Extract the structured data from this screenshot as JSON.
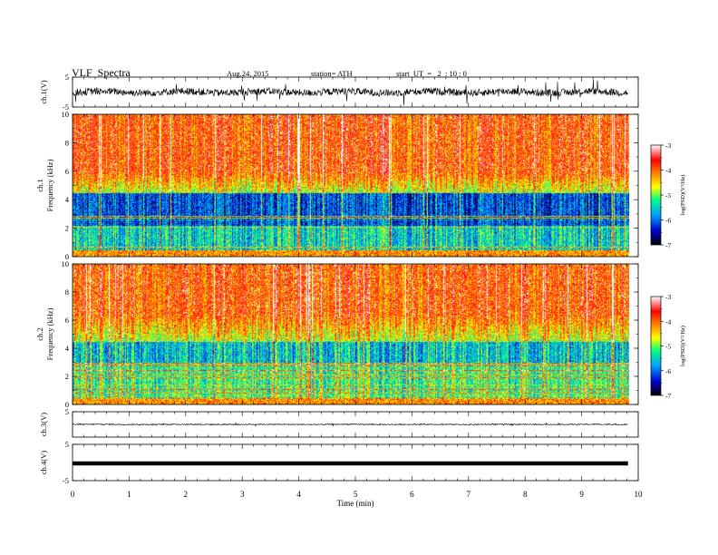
{
  "header": {
    "title": "VLF  Spectra",
    "date": "Aug.24, 2015",
    "station": "station= ATH",
    "start": "start  UT  =   2  : 10 : 0"
  },
  "chart_data": [
    {
      "type": "line",
      "ylabel": "ch.1(V)",
      "ylim": [
        -5,
        5
      ],
      "yticks": [
        "5",
        "-5"
      ],
      "description_of_data": "noisy waveform around ~0 V with spikes"
    },
    {
      "type": "heatmap",
      "ylabel": "ch.1\nFrequency (kHz)",
      "ylim": [
        0,
        10
      ],
      "yticks": [
        "0",
        "2",
        "4",
        "6",
        "8",
        "10"
      ],
      "colorbar": {
        "label": "log(PSD)(V²/Hz)",
        "ticks": [
          "-3",
          "-4",
          "-5",
          "-6",
          "-7"
        ],
        "range": [
          -7,
          -3
        ],
        "colors": [
          "#000000",
          "#0000d0",
          "#00a0ff",
          "#00ff80",
          "#ffff00",
          "#ff8000",
          "#ff0000",
          "#ffffff"
        ]
      }
    },
    {
      "type": "heatmap",
      "ylabel": "ch.2\nFrequency (kHz)",
      "ylim": [
        0,
        10
      ],
      "yticks": [
        "0",
        "2",
        "4",
        "6",
        "8",
        "10"
      ],
      "colorbar": {
        "label": "log(PSD)(V²/Hz)",
        "ticks": [
          "-3",
          "-4",
          "-5",
          "-6",
          "-7"
        ],
        "range": [
          -7,
          -3
        ]
      }
    },
    {
      "type": "line",
      "ylabel": "ch.3(V)",
      "ylim": [
        -5,
        5
      ],
      "yticks": [
        "5"
      ]
    },
    {
      "type": "line",
      "ylabel": "ch.4(V)",
      "ylim": [
        -5,
        5
      ],
      "yticks": [
        "5",
        "-5"
      ]
    }
  ],
  "xaxis": {
    "label": "Time  (min)",
    "ticks": [
      "0",
      "1",
      "2",
      "3",
      "4",
      "5",
      "6",
      "7",
      "8",
      "9",
      "10"
    ],
    "range": [
      0,
      10
    ],
    "data_end": 9.82
  }
}
